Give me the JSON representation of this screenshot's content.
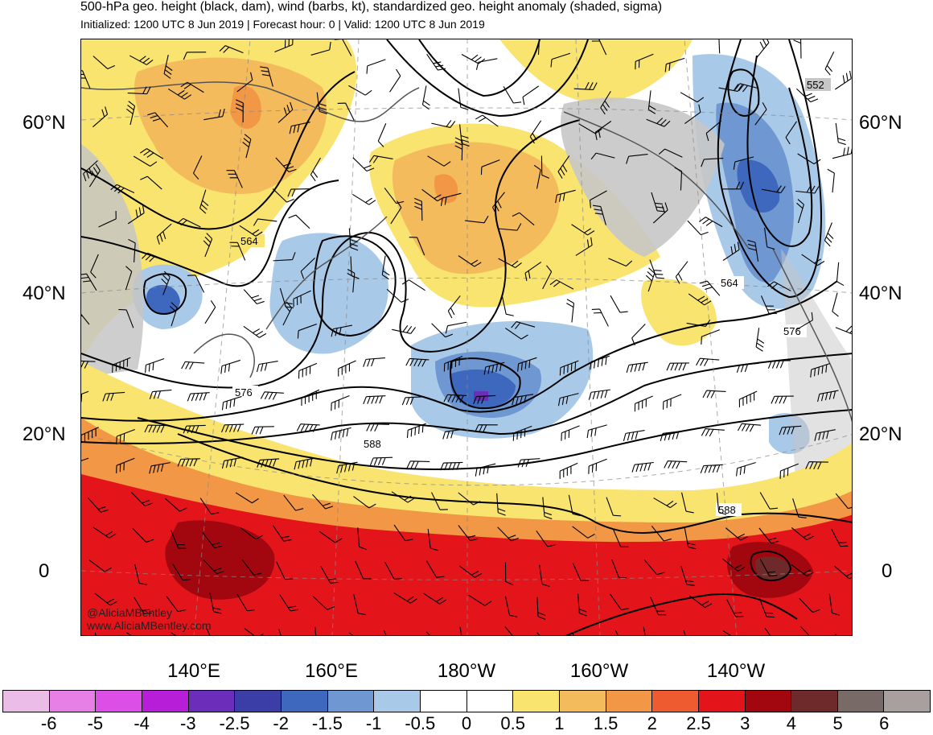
{
  "header": {
    "title": "500-hPa geo. height (black, dam), wind (barbs, kt), standardized geo. height anomaly (shaded, sigma)",
    "subtitle": "Initialized: 1200 UTC 8 Jun 2019 | Forecast hour: 0 | Valid: 1200 UTC 8 Jun 2019"
  },
  "map": {
    "lat_labels": [
      {
        "text": "60°N",
        "y": 151
      },
      {
        "text": "40°N",
        "y": 363
      },
      {
        "text": "20°N",
        "y": 538
      },
      {
        "text": "0",
        "y": 708
      }
    ],
    "lon_labels": [
      "140°E",
      "160°E",
      "180°W",
      "160°W",
      "140°W"
    ],
    "contour_labels": [
      "564",
      "576",
      "588",
      "564",
      "576",
      "588",
      "552"
    ],
    "credit_handle": "@AliciaMBentley",
    "credit_site": "www.AliciaMBentley.com",
    "colors": {
      "land": "#c6c6c6",
      "coast": "#555555",
      "contour": "#000000"
    }
  },
  "colorbar": {
    "colors": [
      "#ebbde6",
      "#e67fe6",
      "#dc4fe6",
      "#b71ed7",
      "#6a2ebb",
      "#3b3ea6",
      "#3e68bd",
      "#6f98d2",
      "#a9c9e8",
      "#ffffff",
      "#ffffff",
      "#f9e46f",
      "#f4bb5c",
      "#f19745",
      "#ef5b30",
      "#e4141b",
      "#a2060f",
      "#6e2a2a",
      "#786a66",
      "#a8a09e"
    ],
    "labels": [
      "-6",
      "-5",
      "-4",
      "-3",
      "-2.5",
      "-2",
      "-1.5",
      "-1",
      "-0.5",
      "0",
      "0.5",
      "1",
      "1.5",
      "2",
      "2.5",
      "3",
      "4",
      "5",
      "6"
    ]
  }
}
